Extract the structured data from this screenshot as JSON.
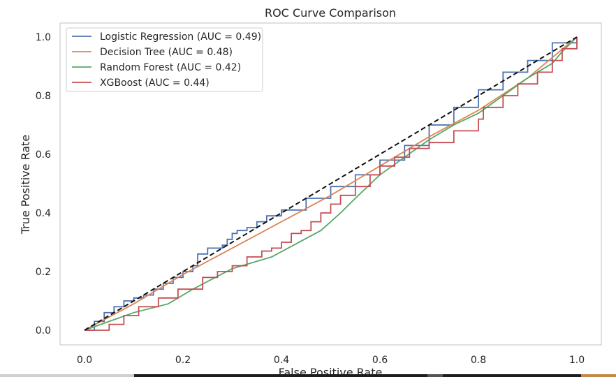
{
  "chart_data": {
    "type": "line",
    "title": "ROC Curve Comparison",
    "xlabel": "False Positive Rate",
    "ylabel": "True Positive Rate",
    "xlim": [
      -0.05,
      1.05
    ],
    "ylim": [
      -0.05,
      1.05
    ],
    "xticks": [
      "0.0",
      "0.2",
      "0.4",
      "0.6",
      "0.8",
      "1.0"
    ],
    "yticks": [
      "0.0",
      "0.2",
      "0.4",
      "0.6",
      "0.8",
      "1.0"
    ],
    "grid": false,
    "legend_position": "upper-left",
    "reference_line": {
      "style": "dashed",
      "color": "#111111",
      "x": [
        0,
        1
      ],
      "y": [
        0,
        1
      ]
    },
    "series": [
      {
        "name": "Logistic Regression (AUC = 0.49)",
        "color": "#4c72b0",
        "step": true,
        "x": [
          0.0,
          0.02,
          0.04,
          0.06,
          0.08,
          0.1,
          0.12,
          0.14,
          0.16,
          0.18,
          0.2,
          0.22,
          0.23,
          0.25,
          0.28,
          0.29,
          0.3,
          0.31,
          0.33,
          0.35,
          0.37,
          0.4,
          0.45,
          0.5,
          0.55,
          0.6,
          0.65,
          0.7,
          0.75,
          0.8,
          0.85,
          0.9,
          0.95,
          1.0
        ],
        "y": [
          0.0,
          0.03,
          0.06,
          0.08,
          0.1,
          0.11,
          0.12,
          0.14,
          0.16,
          0.18,
          0.2,
          0.22,
          0.26,
          0.28,
          0.29,
          0.31,
          0.33,
          0.34,
          0.35,
          0.37,
          0.39,
          0.41,
          0.45,
          0.49,
          0.53,
          0.58,
          0.63,
          0.7,
          0.76,
          0.82,
          0.88,
          0.92,
          0.98,
          1.0
        ]
      },
      {
        "name": "Decision Tree (AUC = 0.48)",
        "color": "#dd8452",
        "step": false,
        "x": [
          0.0,
          0.1,
          0.2,
          0.3,
          0.4,
          0.5,
          0.6,
          0.7,
          0.8,
          0.9,
          1.0
        ],
        "y": [
          0.0,
          0.09,
          0.19,
          0.28,
          0.37,
          0.46,
          0.56,
          0.66,
          0.75,
          0.86,
          1.0
        ]
      },
      {
        "name": "Random Forest (AUC = 0.42)",
        "color": "#55a868",
        "step": false,
        "x": [
          0.0,
          0.05,
          0.1,
          0.17,
          0.22,
          0.3,
          0.38,
          0.48,
          0.52,
          0.55,
          0.6,
          0.65,
          0.7,
          0.75,
          0.8,
          0.85,
          0.9,
          0.93,
          0.95,
          0.97,
          1.0
        ],
        "y": [
          0.0,
          0.03,
          0.06,
          0.09,
          0.14,
          0.21,
          0.25,
          0.34,
          0.4,
          0.45,
          0.53,
          0.59,
          0.65,
          0.7,
          0.74,
          0.8,
          0.86,
          0.89,
          0.91,
          0.95,
          1.0
        ]
      },
      {
        "name": "XGBoost (AUC = 0.44)",
        "color": "#c44e52",
        "step": true,
        "x": [
          0.0,
          0.05,
          0.08,
          0.11,
          0.15,
          0.19,
          0.24,
          0.27,
          0.3,
          0.33,
          0.36,
          0.38,
          0.4,
          0.42,
          0.44,
          0.46,
          0.48,
          0.5,
          0.52,
          0.55,
          0.58,
          0.6,
          0.63,
          0.66,
          0.7,
          0.75,
          0.8,
          0.81,
          0.85,
          0.88,
          0.92,
          0.95,
          0.97,
          1.0
        ],
        "y": [
          0.0,
          0.02,
          0.05,
          0.08,
          0.11,
          0.14,
          0.18,
          0.2,
          0.22,
          0.25,
          0.27,
          0.28,
          0.3,
          0.33,
          0.34,
          0.37,
          0.4,
          0.43,
          0.46,
          0.49,
          0.53,
          0.56,
          0.59,
          0.62,
          0.64,
          0.68,
          0.72,
          0.76,
          0.8,
          0.84,
          0.88,
          0.92,
          0.96,
          1.0
        ]
      }
    ]
  }
}
